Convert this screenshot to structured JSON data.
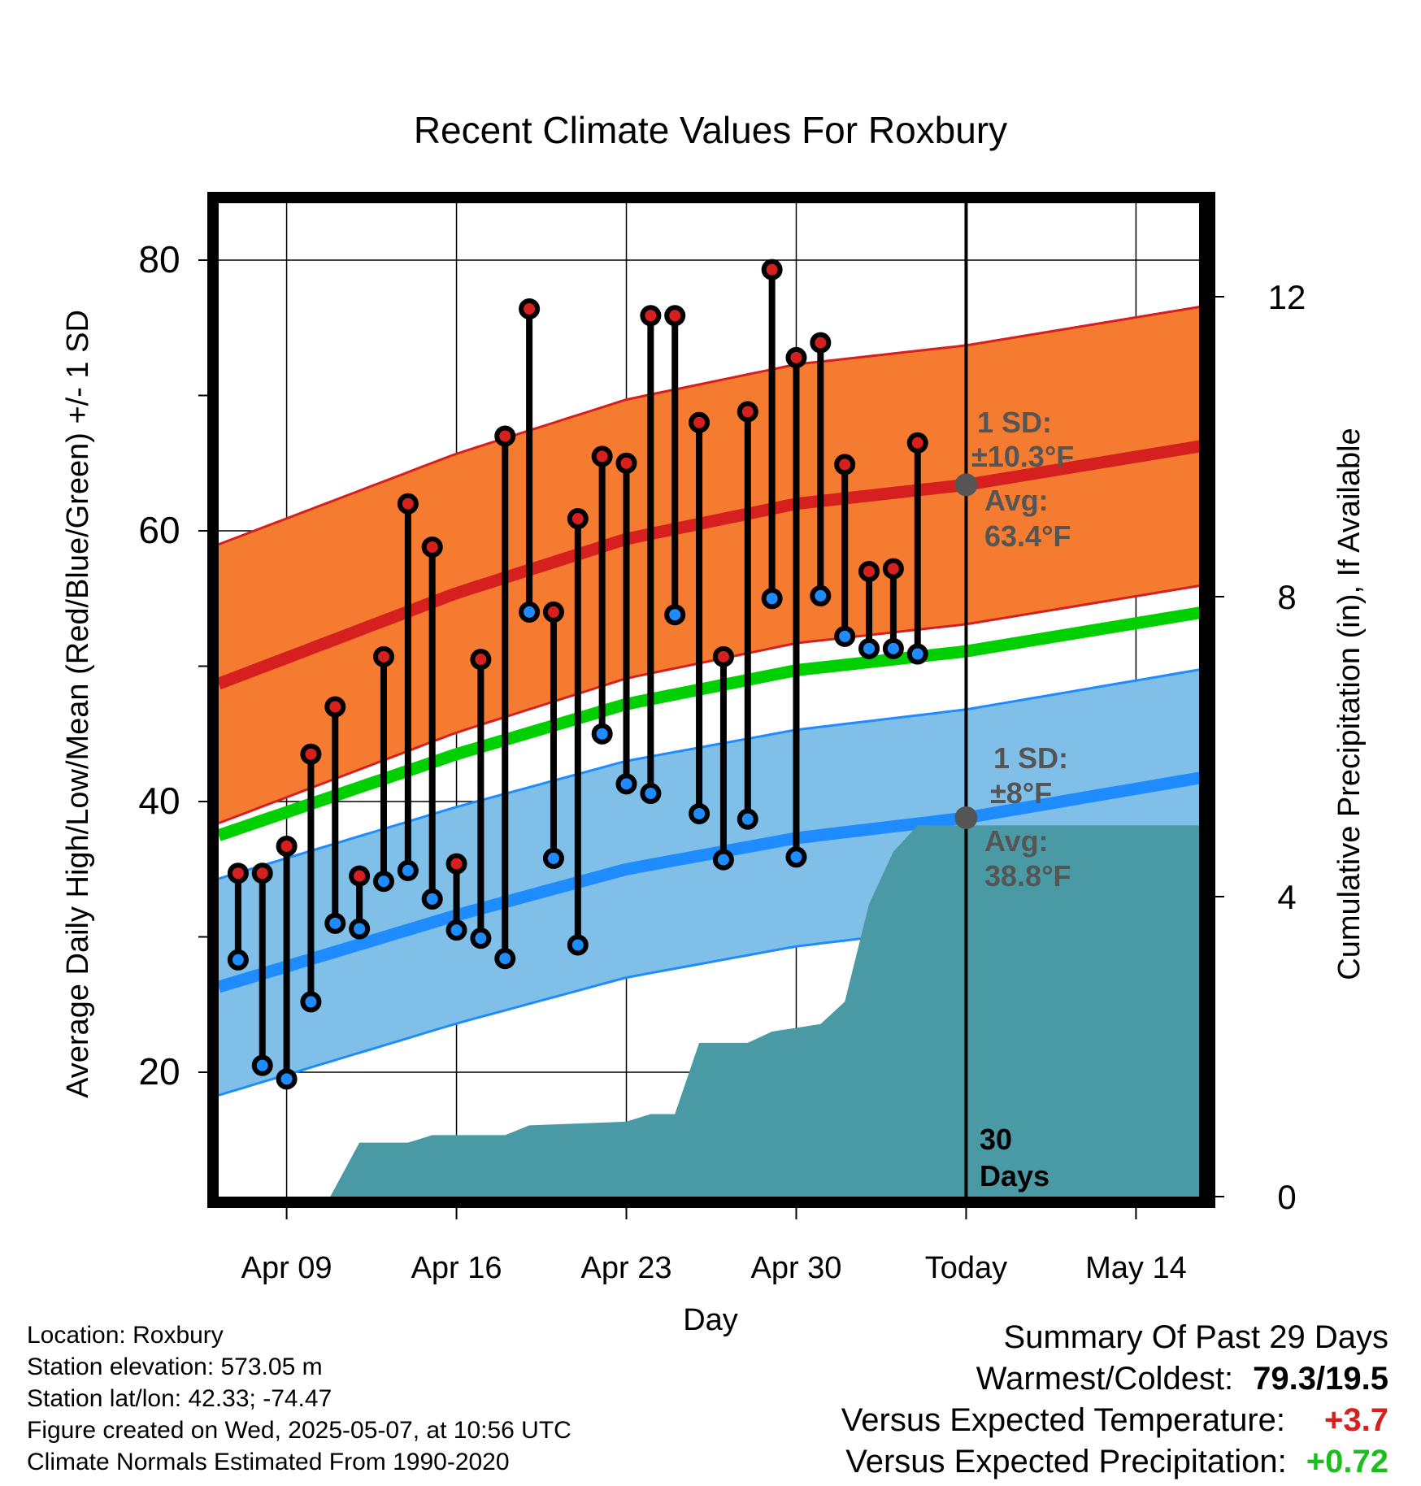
{
  "chart_data": {
    "type": "line",
    "title": "Recent Climate Values For Roxbury",
    "xlabel": "Day",
    "ylabel": "Average Daily High/Low/Mean (Red/Blue/Green) +/- 1 SD",
    "y2label": "Cumulative Precipitation (in), If Available",
    "ylim": [
      12.5,
      85
    ],
    "y2lim": [
      0,
      20.3
    ],
    "xlim": [
      -2.8,
      37.8
    ],
    "x_tick_labels": [
      {
        "x": 0,
        "label": "Apr 09"
      },
      {
        "x": 7,
        "label": "Apr 16"
      },
      {
        "x": 14,
        "label": "Apr 23"
      },
      {
        "x": 21,
        "label": "Apr 30"
      },
      {
        "x": 28,
        "label": "Today"
      },
      {
        "x": 35,
        "label": "May 14"
      }
    ],
    "y_ticks": [
      20,
      40,
      60,
      80
    ],
    "y2_ticks": [
      0,
      4,
      8,
      12
    ],
    "grid": true,
    "today_x": 28,
    "daily_highs": [
      {
        "x": -2,
        "y": 34.7
      },
      {
        "x": -1,
        "y": 34.7
      },
      {
        "x": 0,
        "y": 36.7
      },
      {
        "x": 1,
        "y": 43.5
      },
      {
        "x": 2,
        "y": 47.0
      },
      {
        "x": 3,
        "y": 34.5
      },
      {
        "x": 4,
        "y": 50.7
      },
      {
        "x": 5,
        "y": 62.0
      },
      {
        "x": 6,
        "y": 58.8
      },
      {
        "x": 7,
        "y": 35.4
      },
      {
        "x": 8,
        "y": 50.5
      },
      {
        "x": 9,
        "y": 67.0
      },
      {
        "x": 10,
        "y": 76.4
      },
      {
        "x": 11,
        "y": 54.0
      },
      {
        "x": 12,
        "y": 60.9
      },
      {
        "x": 13,
        "y": 65.5
      },
      {
        "x": 14,
        "y": 65.0
      },
      {
        "x": 15,
        "y": 75.9
      },
      {
        "x": 16,
        "y": 75.9
      },
      {
        "x": 17,
        "y": 68.0
      },
      {
        "x": 18,
        "y": 50.7
      },
      {
        "x": 19,
        "y": 68.8
      },
      {
        "x": 20,
        "y": 79.3
      },
      {
        "x": 21,
        "y": 72.8
      },
      {
        "x": 22,
        "y": 73.9
      },
      {
        "x": 23,
        "y": 64.9
      },
      {
        "x": 24,
        "y": 57.0
      },
      {
        "x": 25,
        "y": 57.2
      },
      {
        "x": 26,
        "y": 66.5
      }
    ],
    "daily_lows": [
      {
        "x": -2,
        "y": 28.3
      },
      {
        "x": -1,
        "y": 20.5
      },
      {
        "x": 0,
        "y": 19.5
      },
      {
        "x": 1,
        "y": 25.2
      },
      {
        "x": 2,
        "y": 31.0
      },
      {
        "x": 3,
        "y": 30.6
      },
      {
        "x": 4,
        "y": 34.1
      },
      {
        "x": 5,
        "y": 34.9
      },
      {
        "x": 6,
        "y": 32.8
      },
      {
        "x": 7,
        "y": 30.5
      },
      {
        "x": 8,
        "y": 29.9
      },
      {
        "x": 9,
        "y": 28.4
      },
      {
        "x": 10,
        "y": 54.0
      },
      {
        "x": 11,
        "y": 35.8
      },
      {
        "x": 12,
        "y": 29.4
      },
      {
        "x": 13,
        "y": 45.0
      },
      {
        "x": 14,
        "y": 41.3
      },
      {
        "x": 15,
        "y": 40.6
      },
      {
        "x": 16,
        "y": 53.8
      },
      {
        "x": 17,
        "y": 39.1
      },
      {
        "x": 18,
        "y": 35.7
      },
      {
        "x": 19,
        "y": 38.7
      },
      {
        "x": 20,
        "y": 55.0
      },
      {
        "x": 21,
        "y": 35.9
      },
      {
        "x": 22,
        "y": 55.2
      },
      {
        "x": 23,
        "y": 52.2
      },
      {
        "x": 24,
        "y": 51.3
      },
      {
        "x": 25,
        "y": 51.3
      },
      {
        "x": 26,
        "y": 50.9
      }
    ],
    "normal_high": {
      "x": [
        -2.8,
        7,
        14,
        21,
        28,
        37.8
      ],
      "avg": [
        48.7,
        55.4,
        59.4,
        62.0,
        63.4,
        66.3
      ],
      "sd": 10.3
    },
    "normal_low": {
      "x": [
        -2.8,
        7,
        14,
        21,
        28,
        37.8
      ],
      "avg": [
        26.3,
        31.6,
        35.0,
        37.3,
        38.8,
        41.8
      ],
      "sd": 8
    },
    "normal_mean": {
      "x": [
        -2.8,
        7,
        14,
        21,
        28,
        37.8
      ],
      "avg": [
        37.5,
        43.5,
        47.2,
        49.7,
        51.1,
        54.0
      ]
    },
    "cumulative_precipitation": {
      "x": [
        -2.8,
        1.8,
        3,
        5,
        6,
        9,
        10,
        14,
        15,
        16,
        17,
        19,
        20,
        22,
        23,
        24,
        25,
        26,
        37.8
      ],
      "y": [
        0.0,
        0.0,
        0.72,
        0.72,
        0.82,
        0.82,
        0.95,
        1.0,
        1.1,
        1.1,
        2.05,
        2.05,
        2.2,
        2.3,
        2.6,
        3.9,
        4.6,
        4.95,
        4.95
      ]
    },
    "annotations": {
      "high_sd": "1 SD:",
      "high_sd_value": "±10.3°F",
      "high_avg_label": "Avg:",
      "high_avg_value": "63.4°F",
      "low_sd": "1 SD:",
      "low_sd_value": "±8°F",
      "low_avg_label": "Avg:",
      "low_avg_value": "38.8°F",
      "days_count": "30",
      "days_label": "Days"
    },
    "colors": {
      "high_band": "#f47b30",
      "high_line": "#d62020",
      "low_band": "#80bfe8",
      "low_line": "#1e8cff",
      "mean_line": "#00d000",
      "precip": "#4a9aa5",
      "high_dot": "#d62020",
      "low_dot": "#1e8cff",
      "annotation": "#555555"
    }
  },
  "info": {
    "location": "Location: Roxbury",
    "elevation": "Station elevation: 573.05 m",
    "latlon": "Station lat/lon: 42.33; -74.47",
    "created": "Figure created on Wed, 2025-05-07, at 10:56 UTC",
    "normals": "Climate Normals Estimated From 1990-2020"
  },
  "summary": {
    "title": "Summary Of Past 29 Days",
    "warm_cold_label": "Warmest/Coldest:",
    "warm_cold_value": "79.3/19.5",
    "temp_label": "Versus Expected Temperature:",
    "temp_value": "+3.7",
    "temp_color": "#d62020",
    "precip_label": "Versus Expected Precipitation:",
    "precip_value": "+0.72",
    "precip_color": "#1bbf1b"
  }
}
